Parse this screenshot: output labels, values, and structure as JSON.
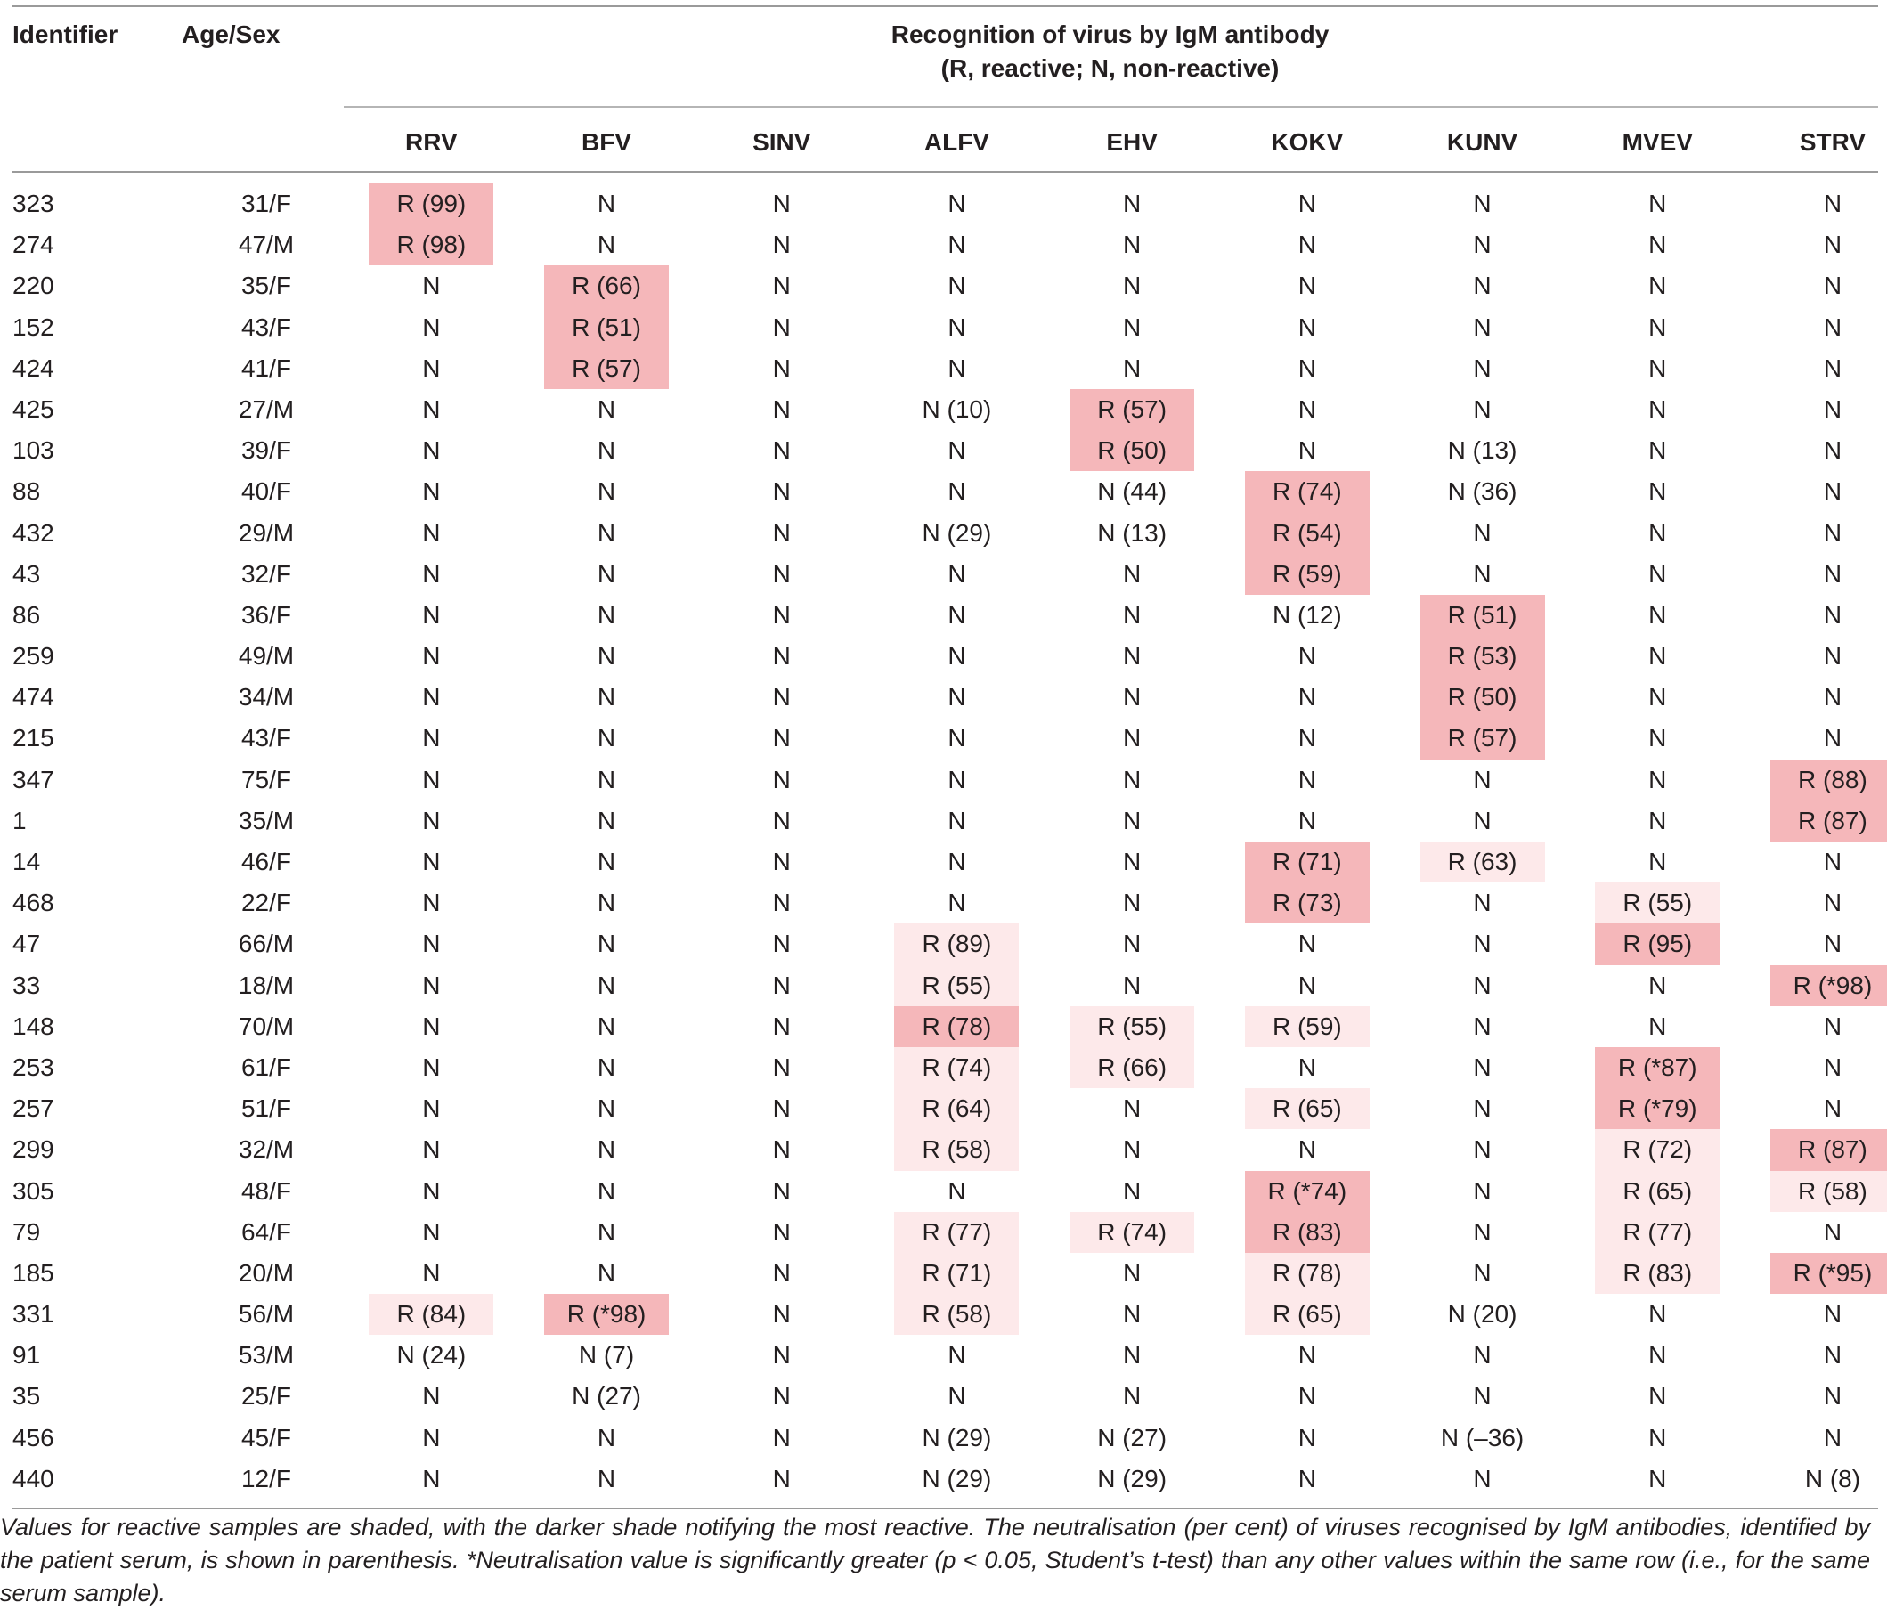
{
  "table": {
    "headers": {
      "identifier": "Identifier",
      "age_sex": "Age/Sex",
      "group_title": "Recognition of virus by IgM antibody",
      "group_subtitle": "(R, reactive; N, non-reactive)",
      "viruses": [
        "RRV",
        "BFV",
        "SINV",
        "ALFV",
        "EHV",
        "KOKV",
        "KUNV",
        "MVEV",
        "STRV"
      ]
    },
    "shading_legend": {
      "dark": "#f5b7ba",
      "light": "#fde9ea"
    },
    "rows": [
      {
        "id": "323",
        "age_sex": "31/F",
        "cells": [
          {
            "t": "R (99)",
            "s": "dark"
          },
          {
            "t": "N"
          },
          {
            "t": "N"
          },
          {
            "t": "N"
          },
          {
            "t": "N"
          },
          {
            "t": "N"
          },
          {
            "t": "N"
          },
          {
            "t": "N"
          },
          {
            "t": "N"
          }
        ]
      },
      {
        "id": "274",
        "age_sex": "47/M",
        "cells": [
          {
            "t": "R (98)",
            "s": "dark"
          },
          {
            "t": "N"
          },
          {
            "t": "N"
          },
          {
            "t": "N"
          },
          {
            "t": "N"
          },
          {
            "t": "N"
          },
          {
            "t": "N"
          },
          {
            "t": "N"
          },
          {
            "t": "N"
          }
        ]
      },
      {
        "id": "220",
        "age_sex": "35/F",
        "cells": [
          {
            "t": "N"
          },
          {
            "t": "R (66)",
            "s": "dark"
          },
          {
            "t": "N"
          },
          {
            "t": "N"
          },
          {
            "t": "N"
          },
          {
            "t": "N"
          },
          {
            "t": "N"
          },
          {
            "t": "N"
          },
          {
            "t": "N"
          }
        ]
      },
      {
        "id": "152",
        "age_sex": "43/F",
        "cells": [
          {
            "t": "N"
          },
          {
            "t": "R (51)",
            "s": "dark"
          },
          {
            "t": "N"
          },
          {
            "t": "N"
          },
          {
            "t": "N"
          },
          {
            "t": "N"
          },
          {
            "t": "N"
          },
          {
            "t": "N"
          },
          {
            "t": "N"
          }
        ]
      },
      {
        "id": "424",
        "age_sex": "41/F",
        "cells": [
          {
            "t": "N"
          },
          {
            "t": "R (57)",
            "s": "dark"
          },
          {
            "t": "N"
          },
          {
            "t": "N"
          },
          {
            "t": "N"
          },
          {
            "t": "N"
          },
          {
            "t": "N"
          },
          {
            "t": "N"
          },
          {
            "t": "N"
          }
        ]
      },
      {
        "id": "425",
        "age_sex": "27/M",
        "cells": [
          {
            "t": "N"
          },
          {
            "t": "N"
          },
          {
            "t": "N"
          },
          {
            "t": "N (10)"
          },
          {
            "t": "R (57)",
            "s": "dark"
          },
          {
            "t": "N"
          },
          {
            "t": "N"
          },
          {
            "t": "N"
          },
          {
            "t": "N"
          }
        ]
      },
      {
        "id": "103",
        "age_sex": "39/F",
        "cells": [
          {
            "t": "N"
          },
          {
            "t": "N"
          },
          {
            "t": "N"
          },
          {
            "t": "N"
          },
          {
            "t": "R (50)",
            "s": "dark"
          },
          {
            "t": "N"
          },
          {
            "t": "N (13)"
          },
          {
            "t": "N"
          },
          {
            "t": "N"
          }
        ]
      },
      {
        "id": "88",
        "age_sex": "40/F",
        "cells": [
          {
            "t": "N"
          },
          {
            "t": "N"
          },
          {
            "t": "N"
          },
          {
            "t": "N"
          },
          {
            "t": "N (44)"
          },
          {
            "t": "R (74)",
            "s": "dark"
          },
          {
            "t": "N (36)"
          },
          {
            "t": "N"
          },
          {
            "t": "N"
          }
        ]
      },
      {
        "id": "432",
        "age_sex": "29/M",
        "cells": [
          {
            "t": "N"
          },
          {
            "t": "N"
          },
          {
            "t": "N"
          },
          {
            "t": "N (29)"
          },
          {
            "t": "N (13)"
          },
          {
            "t": "R (54)",
            "s": "dark"
          },
          {
            "t": "N"
          },
          {
            "t": "N"
          },
          {
            "t": "N"
          }
        ]
      },
      {
        "id": "43",
        "age_sex": "32/F",
        "cells": [
          {
            "t": "N"
          },
          {
            "t": "N"
          },
          {
            "t": "N"
          },
          {
            "t": "N"
          },
          {
            "t": "N"
          },
          {
            "t": "R (59)",
            "s": "dark"
          },
          {
            "t": "N"
          },
          {
            "t": "N"
          },
          {
            "t": "N"
          }
        ]
      },
      {
        "id": "86",
        "age_sex": "36/F",
        "cells": [
          {
            "t": "N"
          },
          {
            "t": "N"
          },
          {
            "t": "N"
          },
          {
            "t": "N"
          },
          {
            "t": "N"
          },
          {
            "t": "N (12)"
          },
          {
            "t": "R (51)",
            "s": "dark"
          },
          {
            "t": "N"
          },
          {
            "t": "N"
          }
        ]
      },
      {
        "id": "259",
        "age_sex": "49/M",
        "cells": [
          {
            "t": "N"
          },
          {
            "t": "N"
          },
          {
            "t": "N"
          },
          {
            "t": "N"
          },
          {
            "t": "N"
          },
          {
            "t": "N"
          },
          {
            "t": "R (53)",
            "s": "dark"
          },
          {
            "t": "N"
          },
          {
            "t": "N"
          }
        ]
      },
      {
        "id": "474",
        "age_sex": "34/M",
        "cells": [
          {
            "t": "N"
          },
          {
            "t": "N"
          },
          {
            "t": "N"
          },
          {
            "t": "N"
          },
          {
            "t": "N"
          },
          {
            "t": "N"
          },
          {
            "t": "R (50)",
            "s": "dark"
          },
          {
            "t": "N"
          },
          {
            "t": "N"
          }
        ]
      },
      {
        "id": "215",
        "age_sex": "43/F",
        "cells": [
          {
            "t": "N"
          },
          {
            "t": "N"
          },
          {
            "t": "N"
          },
          {
            "t": "N"
          },
          {
            "t": "N"
          },
          {
            "t": "N"
          },
          {
            "t": "R (57)",
            "s": "dark"
          },
          {
            "t": "N"
          },
          {
            "t": "N"
          }
        ]
      },
      {
        "id": "347",
        "age_sex": "75/F",
        "cells": [
          {
            "t": "N"
          },
          {
            "t": "N"
          },
          {
            "t": "N"
          },
          {
            "t": "N"
          },
          {
            "t": "N"
          },
          {
            "t": "N"
          },
          {
            "t": "N"
          },
          {
            "t": "N"
          },
          {
            "t": "R (88)",
            "s": "dark"
          }
        ]
      },
      {
        "id": "1",
        "age_sex": "35/M",
        "cells": [
          {
            "t": "N"
          },
          {
            "t": "N"
          },
          {
            "t": "N"
          },
          {
            "t": "N"
          },
          {
            "t": "N"
          },
          {
            "t": "N"
          },
          {
            "t": "N"
          },
          {
            "t": "N"
          },
          {
            "t": "R (87)",
            "s": "dark"
          }
        ]
      },
      {
        "id": "14",
        "age_sex": "46/F",
        "cells": [
          {
            "t": "N"
          },
          {
            "t": "N"
          },
          {
            "t": "N"
          },
          {
            "t": "N"
          },
          {
            "t": "N"
          },
          {
            "t": "R (71)",
            "s": "dark"
          },
          {
            "t": "R (63)",
            "s": "light"
          },
          {
            "t": "N"
          },
          {
            "t": "N"
          }
        ]
      },
      {
        "id": "468",
        "age_sex": "22/F",
        "cells": [
          {
            "t": "N"
          },
          {
            "t": "N"
          },
          {
            "t": "N"
          },
          {
            "t": "N"
          },
          {
            "t": "N"
          },
          {
            "t": "R (73)",
            "s": "dark"
          },
          {
            "t": "N"
          },
          {
            "t": "R (55)",
            "s": "light"
          },
          {
            "t": "N"
          }
        ]
      },
      {
        "id": "47",
        "age_sex": "66/M",
        "cells": [
          {
            "t": "N"
          },
          {
            "t": "N"
          },
          {
            "t": "N"
          },
          {
            "t": "R (89)",
            "s": "light"
          },
          {
            "t": "N"
          },
          {
            "t": "N"
          },
          {
            "t": "N"
          },
          {
            "t": "R (95)",
            "s": "dark"
          },
          {
            "t": "N"
          }
        ]
      },
      {
        "id": "33",
        "age_sex": "18/M",
        "cells": [
          {
            "t": "N"
          },
          {
            "t": "N"
          },
          {
            "t": "N"
          },
          {
            "t": "R (55)",
            "s": "light"
          },
          {
            "t": "N"
          },
          {
            "t": "N"
          },
          {
            "t": "N"
          },
          {
            "t": "N"
          },
          {
            "t": "R (*98)",
            "s": "dark"
          }
        ]
      },
      {
        "id": "148",
        "age_sex": "70/M",
        "cells": [
          {
            "t": "N"
          },
          {
            "t": "N"
          },
          {
            "t": "N"
          },
          {
            "t": "R (78)",
            "s": "dark"
          },
          {
            "t": "R (55)",
            "s": "light"
          },
          {
            "t": "R (59)",
            "s": "light"
          },
          {
            "t": "N"
          },
          {
            "t": "N"
          },
          {
            "t": "N"
          }
        ]
      },
      {
        "id": "253",
        "age_sex": "61/F",
        "cells": [
          {
            "t": "N"
          },
          {
            "t": "N"
          },
          {
            "t": "N"
          },
          {
            "t": "R (74)",
            "s": "light"
          },
          {
            "t": "R (66)",
            "s": "light"
          },
          {
            "t": "N"
          },
          {
            "t": "N"
          },
          {
            "t": "R (*87)",
            "s": "dark"
          },
          {
            "t": "N"
          }
        ]
      },
      {
        "id": "257",
        "age_sex": "51/F",
        "cells": [
          {
            "t": "N"
          },
          {
            "t": "N"
          },
          {
            "t": "N"
          },
          {
            "t": "R (64)",
            "s": "light"
          },
          {
            "t": "N"
          },
          {
            "t": "R (65)",
            "s": "light"
          },
          {
            "t": "N"
          },
          {
            "t": "R (*79)",
            "s": "dark"
          },
          {
            "t": "N"
          }
        ]
      },
      {
        "id": "299",
        "age_sex": "32/M",
        "cells": [
          {
            "t": "N"
          },
          {
            "t": "N"
          },
          {
            "t": "N"
          },
          {
            "t": "R (58)",
            "s": "light"
          },
          {
            "t": "N"
          },
          {
            "t": "N"
          },
          {
            "t": "N"
          },
          {
            "t": "R (72)",
            "s": "light"
          },
          {
            "t": "R (87)",
            "s": "dark"
          }
        ]
      },
      {
        "id": "305",
        "age_sex": "48/F",
        "cells": [
          {
            "t": "N"
          },
          {
            "t": "N"
          },
          {
            "t": "N"
          },
          {
            "t": "N"
          },
          {
            "t": "N"
          },
          {
            "t": "R (*74)",
            "s": "dark"
          },
          {
            "t": "N"
          },
          {
            "t": "R (65)",
            "s": "light"
          },
          {
            "t": "R (58)",
            "s": "light"
          }
        ]
      },
      {
        "id": "79",
        "age_sex": "64/F",
        "cells": [
          {
            "t": "N"
          },
          {
            "t": "N"
          },
          {
            "t": "N"
          },
          {
            "t": "R (77)",
            "s": "light"
          },
          {
            "t": "R (74)",
            "s": "light"
          },
          {
            "t": "R (83)",
            "s": "dark"
          },
          {
            "t": "N"
          },
          {
            "t": "R (77)",
            "s": "light"
          },
          {
            "t": "N"
          }
        ]
      },
      {
        "id": "185",
        "age_sex": "20/M",
        "cells": [
          {
            "t": "N"
          },
          {
            "t": "N"
          },
          {
            "t": "N"
          },
          {
            "t": "R (71)",
            "s": "light"
          },
          {
            "t": "N"
          },
          {
            "t": "R (78)",
            "s": "light"
          },
          {
            "t": "N"
          },
          {
            "t": "R (83)",
            "s": "light"
          },
          {
            "t": "R (*95)",
            "s": "dark"
          }
        ]
      },
      {
        "id": "331",
        "age_sex": "56/M",
        "cells": [
          {
            "t": "R (84)",
            "s": "light"
          },
          {
            "t": "R (*98)",
            "s": "dark"
          },
          {
            "t": "N"
          },
          {
            "t": "R (58)",
            "s": "light"
          },
          {
            "t": "N"
          },
          {
            "t": "R (65)",
            "s": "light"
          },
          {
            "t": "N (20)"
          },
          {
            "t": "N"
          },
          {
            "t": "N"
          }
        ]
      },
      {
        "id": "91",
        "age_sex": "53/M",
        "cells": [
          {
            "t": "N (24)"
          },
          {
            "t": "N (7)"
          },
          {
            "t": "N"
          },
          {
            "t": "N"
          },
          {
            "t": "N"
          },
          {
            "t": "N"
          },
          {
            "t": "N"
          },
          {
            "t": "N"
          },
          {
            "t": "N"
          }
        ]
      },
      {
        "id": "35",
        "age_sex": "25/F",
        "cells": [
          {
            "t": "N"
          },
          {
            "t": "N (27)"
          },
          {
            "t": "N"
          },
          {
            "t": "N"
          },
          {
            "t": "N"
          },
          {
            "t": "N"
          },
          {
            "t": "N"
          },
          {
            "t": "N"
          },
          {
            "t": "N"
          }
        ]
      },
      {
        "id": "456",
        "age_sex": "45/F",
        "cells": [
          {
            "t": "N"
          },
          {
            "t": "N"
          },
          {
            "t": "N"
          },
          {
            "t": "N (29)"
          },
          {
            "t": "N (27)"
          },
          {
            "t": "N"
          },
          {
            "t": "N (–36)"
          },
          {
            "t": "N"
          },
          {
            "t": "N"
          }
        ]
      },
      {
        "id": "440",
        "age_sex": "12/F",
        "cells": [
          {
            "t": "N"
          },
          {
            "t": "N"
          },
          {
            "t": "N"
          },
          {
            "t": "N (29)"
          },
          {
            "t": "N (29)"
          },
          {
            "t": "N"
          },
          {
            "t": "N"
          },
          {
            "t": "N"
          },
          {
            "t": "N (8)"
          }
        ]
      }
    ]
  },
  "footnote": "Values for reactive samples are shaded, with the darker shade notifying the most reactive. The neutralisation (per cent) of viruses recognised by IgM antibodies, identified by the patient serum, is shown in parenthesis. *Neutralisation value is significantly greater (p < 0.05, Student’s t-test) than any other values within the same row (i.e., for the same serum sample)."
}
